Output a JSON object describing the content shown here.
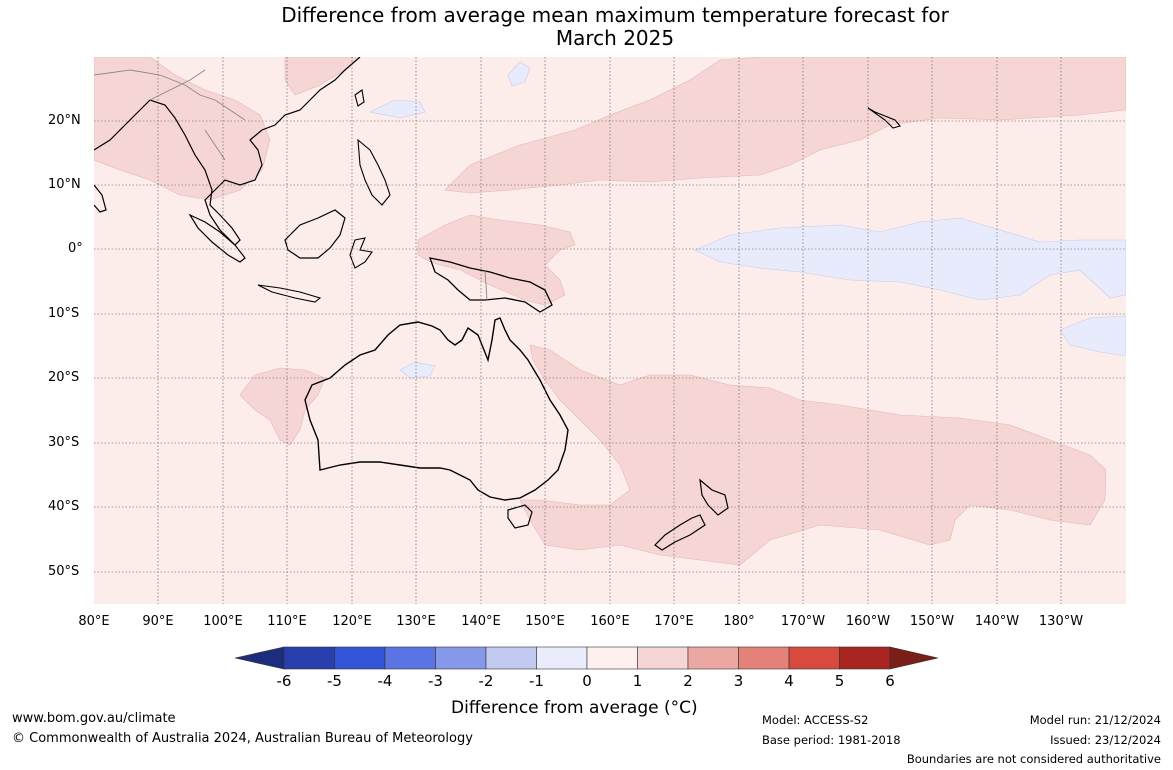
{
  "title_line1": "Difference from average mean maximum temperature forecast for",
  "title_line2": "March 2025",
  "lat_labels": [
    "20°N",
    "10°N",
    "0°",
    "10°S",
    "20°S",
    "30°S",
    "40°S",
    "50°S"
  ],
  "lon_labels": [
    "80°E",
    "90°E",
    "100°E",
    "110°E",
    "120°E",
    "130°E",
    "140°E",
    "150°E",
    "160°E",
    "170°E",
    "180°",
    "170°W",
    "160°W",
    "150°W",
    "140°W",
    "130°W"
  ],
  "colorbar": {
    "ticks": [
      "-6",
      "-5",
      "-4",
      "-3",
      "-2",
      "-1",
      "0",
      "1",
      "2",
      "3",
      "4",
      "5",
      "6"
    ],
    "colors": [
      "#1c2d7e",
      "#2a3fae",
      "#3454d8",
      "#5a74e3",
      "#8598ea",
      "#c3caf2",
      "#ebecfb",
      "#fdf0ee",
      "#f5d6d4",
      "#eba8a2",
      "#e4827a",
      "#d94a3e",
      "#a8261f",
      "#7a1e18"
    ],
    "title": "Difference from average (°C)"
  },
  "map_colors": {
    "background": "#fcecea",
    "warm": "#f5d6d4",
    "cool": "#e8ebfb"
  },
  "footer": {
    "website": "www.bom.gov.au/climate",
    "copyright": "© Commonwealth of Australia 2024, Australian Bureau of Meteorology",
    "model": "Model: ACCESS-S2",
    "base_period": "Base period: 1981-2018",
    "model_run": "Model run: 21/12/2024",
    "issued": "Issued: 23/12/2024",
    "disclaimer": "Boundaries are not considered authoritative"
  }
}
